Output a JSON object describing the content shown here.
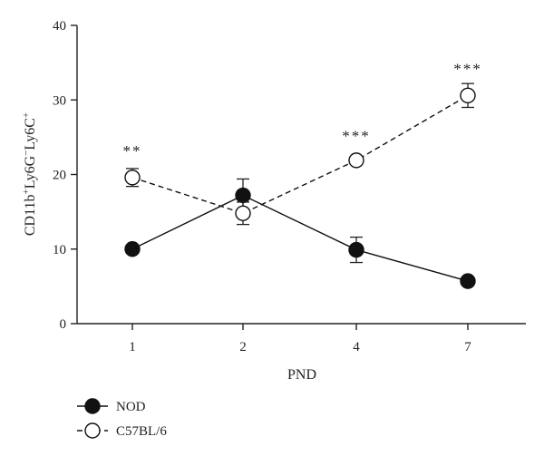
{
  "chart_data": {
    "type": "line",
    "xlabel": "PND",
    "ylabel": {
      "parts": [
        {
          "text": "CD11b",
          "sup": "+"
        },
        {
          "text": "Ly6G",
          "sup": "−"
        },
        {
          "text": "Ly6C",
          "sup": "+"
        }
      ]
    },
    "categories": [
      "1",
      "2",
      "4",
      "7"
    ],
    "ylim": [
      0,
      40
    ],
    "yticks": [
      0,
      10,
      20,
      30,
      40
    ],
    "grid": false,
    "legend_position": "bottom-left",
    "series": [
      {
        "name": "NOD",
        "marker": "filled-circle",
        "line_style": "solid",
        "color": "#111111",
        "values": [
          10.0,
          17.2,
          9.9,
          5.7
        ],
        "error": [
          0.0,
          2.2,
          1.7,
          0.0
        ]
      },
      {
        "name": "C57BL/6",
        "marker": "open-circle",
        "line_style": "dashed",
        "color": "#111111",
        "values": [
          19.6,
          14.8,
          21.9,
          30.6
        ],
        "error": [
          1.2,
          1.5,
          0.0,
          1.6
        ]
      }
    ],
    "annotations": [
      {
        "category": "1",
        "y": 22.5,
        "text": "**"
      },
      {
        "category": "4",
        "y": 24.5,
        "text": "***"
      },
      {
        "category": "7",
        "y": 33.5,
        "text": "***"
      }
    ]
  }
}
